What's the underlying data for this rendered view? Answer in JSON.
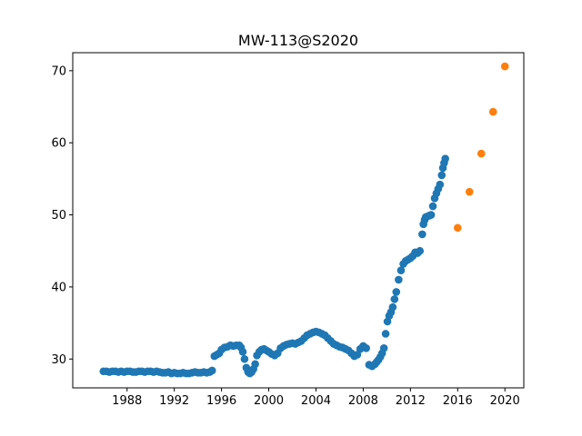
{
  "chart_data": {
    "type": "scatter",
    "title": "MW-113@S2020",
    "xlabel": "",
    "ylabel": "",
    "xlim": [
      1983.4,
      2021.6
    ],
    "ylim": [
      26.0,
      72.5
    ],
    "grid": false,
    "x_ticks": [
      1988,
      1992,
      1996,
      2000,
      2004,
      2008,
      2012,
      2016,
      2020
    ],
    "x_tick_labels": [
      "1988",
      "1992",
      "1996",
      "2000",
      "2004",
      "2008",
      "2012",
      "2016",
      "2020"
    ],
    "y_ticks": [
      30,
      40,
      50,
      60,
      70
    ],
    "y_tick_labels": [
      "30",
      "40",
      "50",
      "60",
      "70"
    ],
    "series": [
      {
        "color": "#1f77b4",
        "x": [
          1986.0,
          1986.25,
          1986.5,
          1986.75,
          1987.0,
          1987.25,
          1987.5,
          1987.75,
          1988.0,
          1988.25,
          1988.5,
          1988.75,
          1989.0,
          1989.25,
          1989.5,
          1989.75,
          1990.0,
          1990.25,
          1990.5,
          1990.75,
          1991.0,
          1991.25,
          1991.5,
          1991.75,
          1992.0,
          1992.25,
          1992.5,
          1992.75,
          1993.0,
          1993.25,
          1993.5,
          1993.75,
          1994.0,
          1994.25,
          1994.5,
          1994.75,
          1995.0,
          1995.2,
          1995.4,
          1995.6,
          1995.8,
          1996.0,
          1996.25,
          1996.5,
          1996.75,
          1997.0,
          1997.25,
          1997.5,
          1997.65,
          1997.8,
          1997.95,
          1998.1,
          1998.25,
          1998.4,
          1998.55,
          1998.7,
          1998.85,
          1999.0,
          1999.2,
          1999.4,
          1999.6,
          1999.8,
          2000.0,
          2000.25,
          2000.5,
          2000.75,
          2001.0,
          2001.25,
          2001.5,
          2001.75,
          2002.0,
          2002.25,
          2002.5,
          2002.75,
          2003.0,
          2003.25,
          2003.5,
          2003.75,
          2004.0,
          2004.25,
          2004.5,
          2004.75,
          2005.0,
          2005.25,
          2005.5,
          2005.75,
          2006.0,
          2006.25,
          2006.5,
          2006.75,
          2007.0,
          2007.25,
          2007.5,
          2007.75,
          2008.0,
          2008.25,
          2008.5,
          2008.75,
          2009.0,
          2009.15,
          2009.3,
          2009.45,
          2009.6,
          2009.75,
          2009.9,
          2010.05,
          2010.2,
          2010.35,
          2010.5,
          2010.65,
          2010.8,
          2011.0,
          2011.2,
          2011.4,
          2011.6,
          2011.8,
          2012.0,
          2012.2,
          2012.4,
          2012.6,
          2012.8,
          2013.0,
          2013.1,
          2013.2,
          2013.3,
          2013.45,
          2013.6,
          2013.75,
          2013.9,
          2014.05,
          2014.2,
          2014.35,
          2014.5,
          2014.65,
          2014.75,
          2014.85,
          2014.95
        ],
        "y": [
          28.3,
          28.3,
          28.2,
          28.3,
          28.3,
          28.2,
          28.3,
          28.2,
          28.3,
          28.3,
          28.2,
          28.2,
          28.3,
          28.3,
          28.2,
          28.3,
          28.3,
          28.2,
          28.3,
          28.2,
          28.1,
          28.1,
          28.2,
          28.0,
          28.1,
          28.0,
          28.0,
          28.1,
          28.0,
          28.0,
          28.1,
          28.2,
          28.1,
          28.1,
          28.2,
          28.1,
          28.2,
          28.4,
          30.4,
          30.6,
          30.8,
          31.3,
          31.6,
          31.7,
          31.9,
          31.8,
          31.9,
          31.9,
          31.6,
          31.0,
          30.0,
          28.8,
          28.2,
          28.0,
          28.2,
          28.6,
          29.3,
          30.5,
          31.0,
          31.3,
          31.4,
          31.2,
          31.0,
          30.7,
          30.5,
          30.8,
          31.5,
          31.8,
          32.0,
          32.1,
          32.2,
          32.1,
          32.3,
          32.5,
          32.9,
          33.3,
          33.5,
          33.7,
          33.8,
          33.7,
          33.5,
          33.3,
          32.9,
          32.5,
          32.1,
          31.9,
          31.7,
          31.6,
          31.4,
          31.2,
          30.8,
          30.4,
          30.6,
          31.4,
          31.8,
          31.5,
          29.2,
          29.0,
          29.3,
          29.6,
          29.9,
          30.3,
          30.8,
          31.5,
          33.5,
          35.2,
          36.0,
          36.5,
          37.2,
          38.3,
          39.3,
          41.0,
          42.3,
          43.2,
          43.6,
          43.8,
          44.0,
          44.3,
          44.8,
          44.7,
          45.0,
          47.3,
          48.7,
          49.3,
          49.7,
          49.8,
          49.9,
          50.0,
          51.2,
          52.3,
          53.0,
          53.6,
          54.2,
          55.5,
          56.5,
          57.2,
          57.8
        ]
      },
      {
        "color": "#ff7f0e",
        "x": [
          2016,
          2017,
          2018,
          2019,
          2020
        ],
        "y": [
          48.2,
          53.2,
          58.5,
          64.3,
          70.6
        ]
      }
    ]
  }
}
